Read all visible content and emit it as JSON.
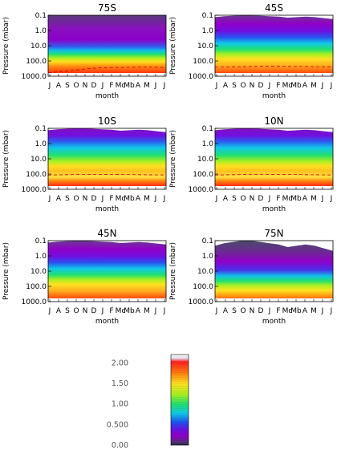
{
  "chart_data": {
    "type": "heatmap",
    "ylabel": "Pressure (mbar)",
    "xlabel": "month",
    "x_tick_labels": [
      "J",
      "A",
      "S",
      "O",
      "N",
      "D",
      "J",
      "F",
      "Mc",
      "Mb",
      "A",
      "M",
      "J",
      "J"
    ],
    "y_tick_labels": [
      "0.1",
      "1.0",
      "10.0",
      "100.0",
      "1000.0"
    ],
    "y_scale": "log",
    "y_range_mbar": [
      1000,
      0.1
    ],
    "panels": [
      {
        "title": "75S",
        "tropopause_mbar": [
          600,
          520,
          470,
          400,
          340,
          300,
          280,
          270,
          270,
          260,
          250,
          250,
          260,
          280
        ]
      },
      {
        "title": "45S",
        "tropopause_mbar": [
          250,
          245,
          240,
          235,
          230,
          225,
          225,
          225,
          228,
          230,
          232,
          235,
          238,
          240
        ]
      },
      {
        "title": "10S",
        "tropopause_mbar": [
          115,
          113,
          110,
          108,
          106,
          105,
          105,
          106,
          107,
          108,
          110,
          112,
          113,
          115
        ]
      },
      {
        "title": "10N",
        "tropopause_mbar": [
          115,
          113,
          110,
          108,
          106,
          105,
          105,
          106,
          107,
          108,
          110,
          112,
          113,
          115
        ]
      },
      {
        "title": "45N",
        "tropopause_mbar": []
      },
      {
        "title": "75N",
        "tropopause_mbar": []
      }
    ],
    "colorbar": {
      "labels": [
        "2.00",
        "1.50",
        "1.00",
        "0.500",
        "0.00"
      ],
      "values": [
        2.0,
        1.5,
        1.0,
        0.5,
        0.0
      ],
      "range": [
        0.0,
        2.2
      ]
    }
  }
}
